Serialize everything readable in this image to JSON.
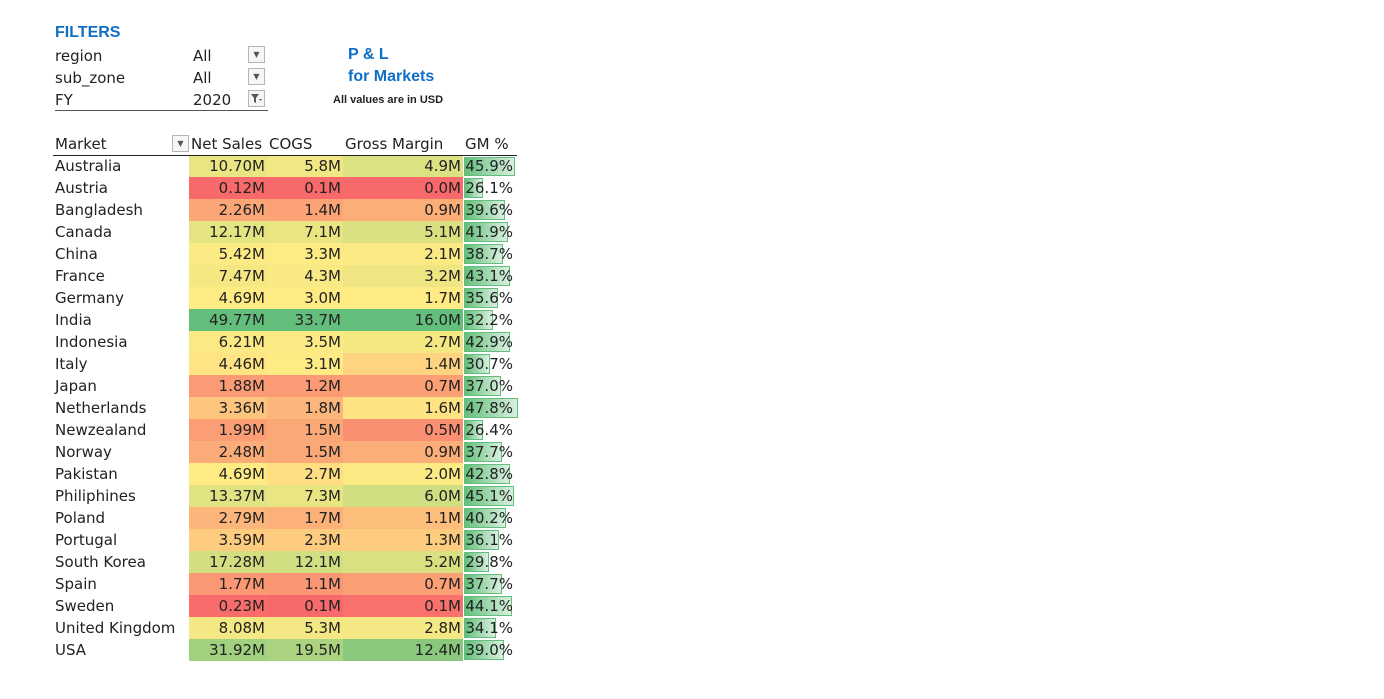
{
  "filters": {
    "title": "FILTERS",
    "items": [
      {
        "label": "region",
        "value": "All",
        "icon": "dropdown-arrow-icon"
      },
      {
        "label": "sub_zone",
        "value": "All",
        "icon": "dropdown-arrow-icon"
      },
      {
        "label": "FY",
        "value": "2020",
        "icon": "filter-active-icon"
      }
    ]
  },
  "report": {
    "title_line1": "P & L",
    "title_line2": "for Markets",
    "note": "All values are in USD",
    "title_color": "#0f6fc6"
  },
  "table": {
    "headers": [
      "Market",
      "Net Sales",
      "COGS",
      "Gross Margin",
      "GM %"
    ],
    "rows": [
      {
        "market": "Australia",
        "net_sales": "10.70M",
        "cogs": "5.8M",
        "gross_margin": "4.9M",
        "gm_pct": "45.9%"
      },
      {
        "market": "Austria",
        "net_sales": "0.12M",
        "cogs": "0.1M",
        "gross_margin": "0.0M",
        "gm_pct": "26.1%"
      },
      {
        "market": "Bangladesh",
        "net_sales": "2.26M",
        "cogs": "1.4M",
        "gross_margin": "0.9M",
        "gm_pct": "39.6%"
      },
      {
        "market": "Canada",
        "net_sales": "12.17M",
        "cogs": "7.1M",
        "gross_margin": "5.1M",
        "gm_pct": "41.9%"
      },
      {
        "market": "China",
        "net_sales": "5.42M",
        "cogs": "3.3M",
        "gross_margin": "2.1M",
        "gm_pct": "38.7%"
      },
      {
        "market": "France",
        "net_sales": "7.47M",
        "cogs": "4.3M",
        "gross_margin": "3.2M",
        "gm_pct": "43.1%"
      },
      {
        "market": "Germany",
        "net_sales": "4.69M",
        "cogs": "3.0M",
        "gross_margin": "1.7M",
        "gm_pct": "35.6%"
      },
      {
        "market": "India",
        "net_sales": "49.77M",
        "cogs": "33.7M",
        "gross_margin": "16.0M",
        "gm_pct": "32.2%"
      },
      {
        "market": "Indonesia",
        "net_sales": "6.21M",
        "cogs": "3.5M",
        "gross_margin": "2.7M",
        "gm_pct": "42.9%"
      },
      {
        "market": "Italy",
        "net_sales": "4.46M",
        "cogs": "3.1M",
        "gross_margin": "1.4M",
        "gm_pct": "30.7%"
      },
      {
        "market": "Japan",
        "net_sales": "1.88M",
        "cogs": "1.2M",
        "gross_margin": "0.7M",
        "gm_pct": "37.0%"
      },
      {
        "market": "Netherlands",
        "net_sales": "3.36M",
        "cogs": "1.8M",
        "gross_margin": "1.6M",
        "gm_pct": "47.8%"
      },
      {
        "market": "Newzealand",
        "net_sales": "1.99M",
        "cogs": "1.5M",
        "gross_margin": "0.5M",
        "gm_pct": "26.4%"
      },
      {
        "market": "Norway",
        "net_sales": "2.48M",
        "cogs": "1.5M",
        "gross_margin": "0.9M",
        "gm_pct": "37.7%"
      },
      {
        "market": "Pakistan",
        "net_sales": "4.69M",
        "cogs": "2.7M",
        "gross_margin": "2.0M",
        "gm_pct": "42.8%"
      },
      {
        "market": "Philiphines",
        "net_sales": "13.37M",
        "cogs": "7.3M",
        "gross_margin": "6.0M",
        "gm_pct": "45.1%"
      },
      {
        "market": "Poland",
        "net_sales": "2.79M",
        "cogs": "1.7M",
        "gross_margin": "1.1M",
        "gm_pct": "40.2%"
      },
      {
        "market": "Portugal",
        "net_sales": "3.59M",
        "cogs": "2.3M",
        "gross_margin": "1.3M",
        "gm_pct": "36.1%"
      },
      {
        "market": "South Korea",
        "net_sales": "17.28M",
        "cogs": "12.1M",
        "gross_margin": "5.2M",
        "gm_pct": "29.8%"
      },
      {
        "market": "Spain",
        "net_sales": "1.77M",
        "cogs": "1.1M",
        "gross_margin": "0.7M",
        "gm_pct": "37.7%"
      },
      {
        "market": "Sweden",
        "net_sales": "0.23M",
        "cogs": "0.1M",
        "gross_margin": "0.1M",
        "gm_pct": "44.1%"
      },
      {
        "market": "United Kingdom",
        "net_sales": "8.08M",
        "cogs": "5.3M",
        "gross_margin": "2.8M",
        "gm_pct": "34.1%"
      },
      {
        "market": "USA",
        "net_sales": "31.92M",
        "cogs": "19.5M",
        "gross_margin": "12.4M",
        "gm_pct": "39.0%"
      }
    ],
    "heatmap_colors": {
      "low": "#f8696b",
      "mid": "#ffeb84",
      "high": "#63be7b"
    },
    "databar_color": "#63be7b"
  }
}
